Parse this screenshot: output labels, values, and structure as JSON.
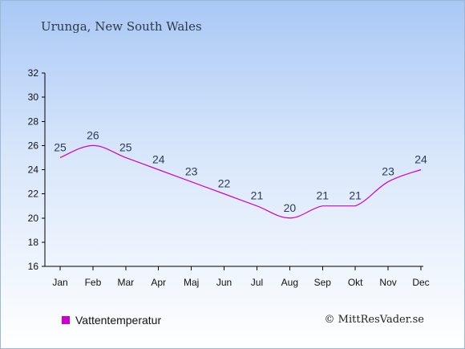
{
  "header": {
    "title": "Urunga, New South Wales"
  },
  "legend": {
    "label": "Vattentemperatur",
    "color": "#cc00cc"
  },
  "footer": {
    "credit": "© MittResVader.se"
  },
  "chart_data": {
    "type": "line",
    "title": "Urunga, New South Wales",
    "xlabel": "",
    "ylabel": "",
    "categories": [
      "Jan",
      "Feb",
      "Mar",
      "Apr",
      "Maj",
      "Jun",
      "Jul",
      "Aug",
      "Sep",
      "Okt",
      "Nov",
      "Dec"
    ],
    "series": [
      {
        "name": "Vattentemperatur",
        "values": [
          25,
          26,
          25,
          24,
          23,
          22,
          21,
          20,
          21,
          21,
          23,
          24
        ],
        "color": "#cc00cc"
      }
    ],
    "ylim": [
      16,
      32
    ],
    "yticks": [
      16,
      18,
      20,
      22,
      24,
      26,
      28,
      30,
      32
    ],
    "grid": false,
    "legend_position": "bottom-left"
  }
}
